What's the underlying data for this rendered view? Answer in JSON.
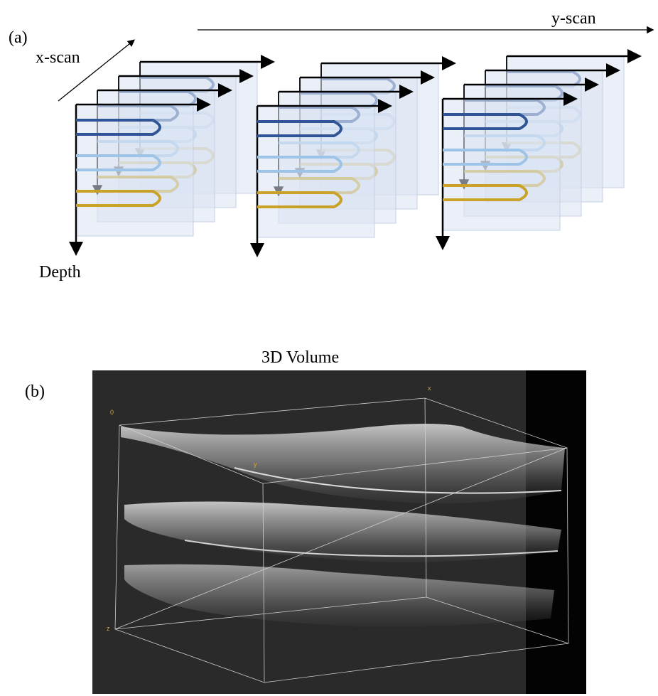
{
  "panel_a": {
    "label": "(a)",
    "x_axis": "x-scan",
    "y_axis": "y-scan",
    "depth_axis": "Depth"
  },
  "panel_b": {
    "label": "(b)",
    "title": "3D Volume",
    "axis_labels": {
      "origin": "0",
      "x": "x",
      "y": "y",
      "z": "z"
    }
  }
}
